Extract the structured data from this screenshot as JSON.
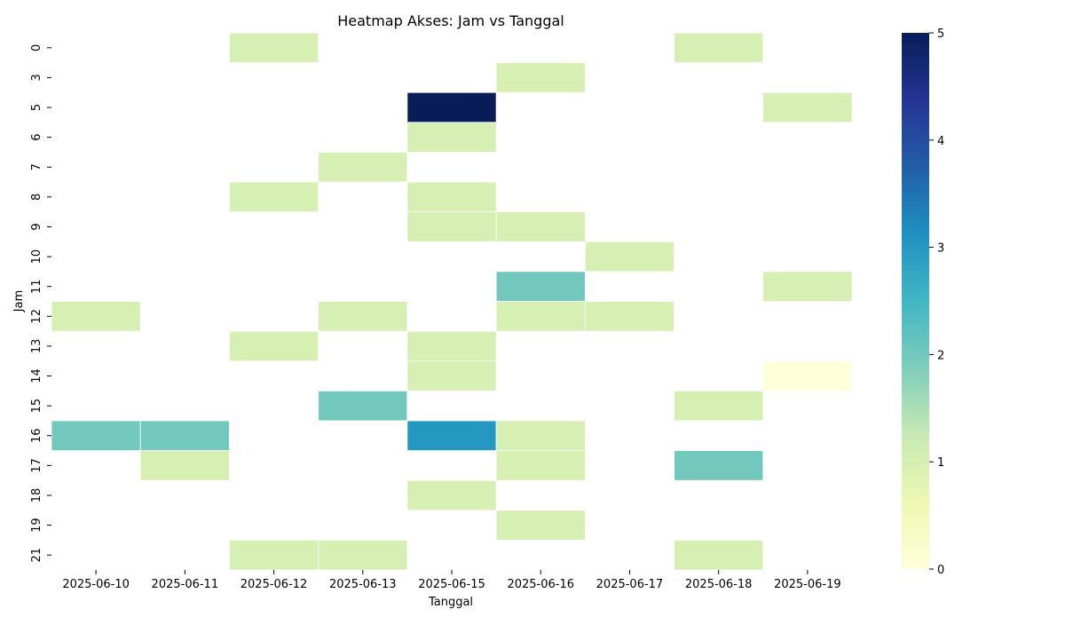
{
  "chart_data": {
    "type": "heatmap",
    "title": "Heatmap Akses: Jam vs Tanggal",
    "xlabel": "Tanggal",
    "ylabel": "Jam",
    "x_categories": [
      "2025-06-10",
      "2025-06-11",
      "2025-06-12",
      "2025-06-13",
      "2025-06-15",
      "2025-06-16",
      "2025-06-17",
      "2025-06-18",
      "2025-06-19"
    ],
    "y_categories": [
      "0",
      "3",
      "5",
      "6",
      "7",
      "8",
      "9",
      "10",
      "11",
      "12",
      "13",
      "14",
      "15",
      "16",
      "17",
      "18",
      "19",
      "21"
    ],
    "values": [
      [
        null,
        null,
        1,
        null,
        null,
        null,
        null,
        1,
        null
      ],
      [
        null,
        null,
        null,
        null,
        null,
        1,
        null,
        null,
        null
      ],
      [
        null,
        null,
        null,
        null,
        5,
        null,
        null,
        null,
        1
      ],
      [
        null,
        null,
        null,
        null,
        1,
        null,
        null,
        null,
        null
      ],
      [
        null,
        null,
        null,
        1,
        null,
        null,
        null,
        null,
        null
      ],
      [
        null,
        null,
        1,
        null,
        1,
        null,
        null,
        null,
        null
      ],
      [
        null,
        null,
        null,
        null,
        1,
        1,
        null,
        null,
        null
      ],
      [
        null,
        null,
        null,
        null,
        null,
        null,
        1,
        null,
        null
      ],
      [
        null,
        null,
        null,
        null,
        null,
        2,
        null,
        null,
        1
      ],
      [
        1,
        null,
        null,
        1,
        null,
        1,
        1,
        null,
        null
      ],
      [
        null,
        null,
        1,
        null,
        1,
        null,
        null,
        null,
        null
      ],
      [
        null,
        null,
        null,
        null,
        1,
        null,
        null,
        null,
        0
      ],
      [
        null,
        null,
        null,
        2,
        null,
        null,
        null,
        1,
        null
      ],
      [
        2,
        2,
        null,
        null,
        3,
        1,
        null,
        null,
        null
      ],
      [
        null,
        1,
        null,
        null,
        null,
        1,
        null,
        2,
        null
      ],
      [
        null,
        null,
        null,
        null,
        1,
        null,
        null,
        null,
        null
      ],
      [
        null,
        null,
        null,
        null,
        null,
        1,
        null,
        null,
        null
      ],
      [
        null,
        null,
        1,
        1,
        null,
        null,
        null,
        1,
        null
      ]
    ],
    "colorbar": {
      "min": 0,
      "max": 5,
      "ticks": [
        "0",
        "1",
        "2",
        "3",
        "4",
        "5"
      ],
      "colormap": "YlGnBu"
    },
    "grid": false,
    "legend": "colorbar-right"
  }
}
